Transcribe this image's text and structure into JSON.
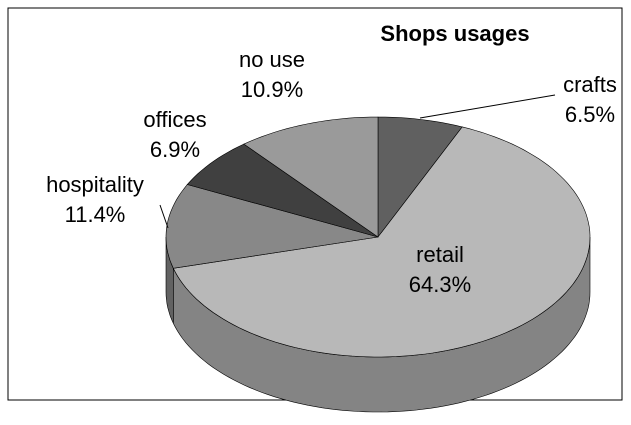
{
  "chart_data": {
    "type": "pie",
    "title": "Shops usages",
    "categories": [
      "crafts",
      "retail",
      "hospitality",
      "offices",
      "no use"
    ],
    "values": [
      6.5,
      64.3,
      11.4,
      6.9,
      10.9
    ],
    "value_labels": [
      "6.5%",
      "64.3%",
      "11.4%",
      "6.9%",
      "10.9%"
    ],
    "colors": [
      "#606060",
      "#b8b8b8",
      "#888888",
      "#404040",
      "#9a9a9a"
    ]
  }
}
